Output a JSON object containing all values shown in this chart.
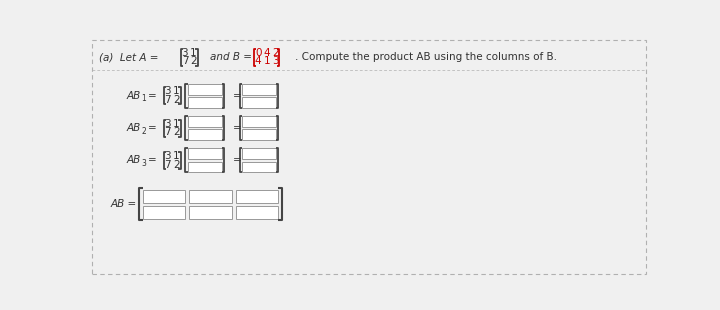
{
  "bg_color": "#f0f0f0",
  "border_color": "#b0b0b0",
  "box_fill": "#ffffff",
  "box_edge": "#999999",
  "bracket_color": "#444444",
  "red_color": "#cc0000",
  "text_color": "#333333",
  "A_matrix": [
    [
      3,
      1
    ],
    [
      7,
      2
    ]
  ],
  "B_matrix": [
    [
      0,
      4,
      2
    ],
    [
      4,
      1,
      3
    ]
  ],
  "font_size": 7.5,
  "sub_font_size": 6.0
}
